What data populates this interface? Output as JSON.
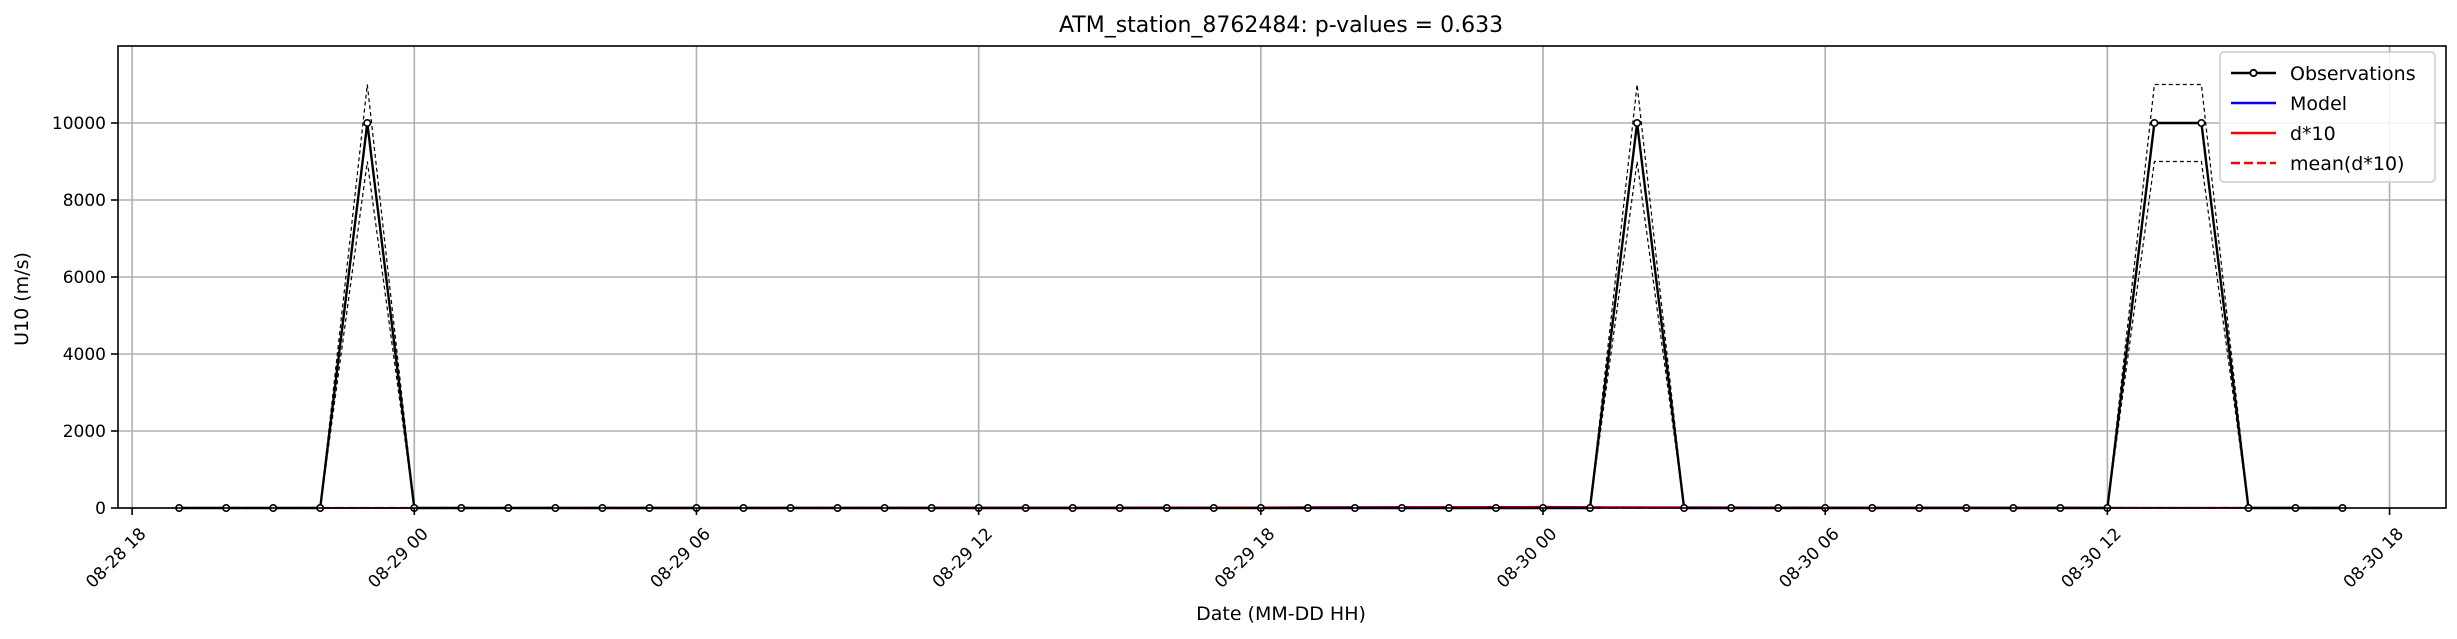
{
  "chart_data": {
    "type": "line",
    "title": "ATM_station_8762484: p-values = 0.633",
    "xlabel": "Date (MM-DD HH)",
    "ylabel": "U10 (m/s)",
    "x_ticks": [
      "08-28 18",
      "08-29 00",
      "08-29 06",
      "08-29 12",
      "08-29 18",
      "08-30 00",
      "08-30 06",
      "08-30 12",
      "08-30 18"
    ],
    "y_ticks": [
      "0",
      "2000",
      "4000",
      "6000",
      "8000",
      "10000"
    ],
    "xlim_hours": [
      -0.3,
      49.2
    ],
    "ylim": [
      0,
      12000
    ],
    "grid": true,
    "legend_position": "top-right",
    "series": [
      {
        "name": "Observations",
        "color": "#000000",
        "style": "solid-with-markers",
        "x_hours": [
          1,
          2,
          3,
          4,
          5,
          6,
          7,
          8,
          9,
          10,
          11,
          12,
          13,
          14,
          15,
          16,
          17,
          18,
          19,
          20,
          21,
          22,
          23,
          24,
          25,
          26,
          27,
          28,
          29,
          30,
          31,
          32,
          33,
          34,
          35,
          36,
          37,
          38,
          39,
          40,
          41,
          42,
          43,
          44,
          45,
          46,
          47
        ],
        "values": [
          0,
          0,
          0,
          0,
          10000,
          0,
          0,
          0,
          0,
          0,
          0,
          0,
          0,
          0,
          0,
          0,
          0,
          0,
          0,
          0,
          0,
          0,
          0,
          0,
          0,
          0,
          0,
          0,
          0,
          0,
          0,
          10000,
          0,
          0,
          0,
          0,
          0,
          0,
          0,
          0,
          0,
          0,
          10000,
          10000,
          0,
          0,
          0
        ]
      },
      {
        "name": "Model",
        "color": "#0000ff",
        "style": "solid",
        "x_hours": [
          1,
          5,
          10,
          15,
          20,
          24,
          25,
          28,
          29,
          30,
          31,
          35,
          40,
          47
        ],
        "values": [
          2,
          3,
          4,
          6,
          10,
          15,
          20,
          25,
          28,
          30,
          25,
          15,
          8,
          5
        ]
      },
      {
        "name": "d*10",
        "color": "#ff0000",
        "style": "solid",
        "x_hours": [
          1,
          10,
          20,
          24,
          28,
          30,
          35,
          47
        ],
        "values": [
          0,
          5,
          10,
          15,
          20,
          20,
          10,
          0
        ]
      },
      {
        "name": "mean(d*10)",
        "color": "#ff0000",
        "style": "dashed",
        "x_hours": [
          1,
          47
        ],
        "values": [
          5,
          5
        ]
      }
    ],
    "envelope": {
      "color": "#000000",
      "style": "dotted",
      "x_hours": [
        1,
        2,
        3,
        4,
        5,
        6,
        7,
        8,
        9,
        10,
        11,
        12,
        13,
        14,
        15,
        16,
        17,
        18,
        19,
        20,
        21,
        22,
        23,
        24,
        25,
        26,
        27,
        28,
        29,
        30,
        31,
        32,
        33,
        34,
        35,
        36,
        37,
        38,
        39,
        40,
        41,
        42,
        43,
        44,
        45,
        46,
        47
      ],
      "upper": [
        0,
        0,
        0,
        0,
        11000,
        0,
        0,
        0,
        0,
        0,
        0,
        0,
        0,
        0,
        0,
        0,
        0,
        0,
        0,
        0,
        0,
        0,
        0,
        0,
        0,
        0,
        0,
        0,
        0,
        0,
        0,
        11000,
        0,
        0,
        0,
        0,
        0,
        0,
        0,
        0,
        0,
        0,
        11000,
        11000,
        0,
        0,
        0
      ],
      "lower": [
        0,
        0,
        0,
        0,
        9000,
        0,
        0,
        0,
        0,
        0,
        0,
        0,
        0,
        0,
        0,
        0,
        0,
        0,
        0,
        0,
        0,
        0,
        0,
        0,
        0,
        0,
        0,
        0,
        0,
        0,
        0,
        9000,
        0,
        0,
        0,
        0,
        0,
        0,
        0,
        0,
        0,
        0,
        9000,
        9000,
        0,
        0,
        0
      ]
    }
  }
}
